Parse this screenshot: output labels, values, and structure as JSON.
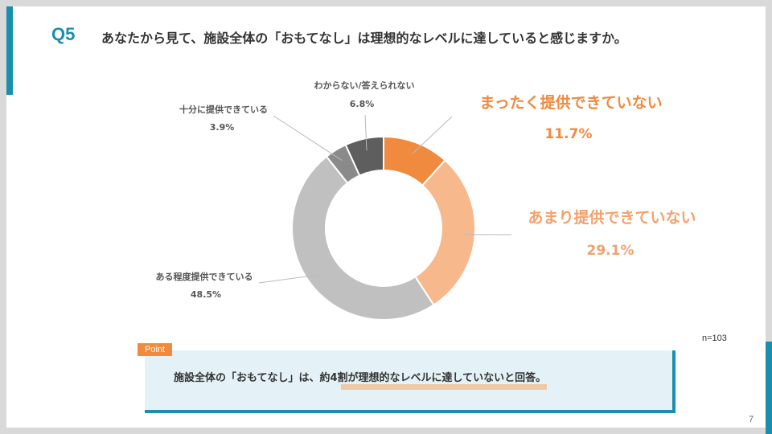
{
  "question": {
    "label": "Q5",
    "text": "あなたから見て、施設全体の「おもてなし」は理想的なレベルに達していると感じますか。"
  },
  "chart_data": {
    "type": "pie",
    "donut": true,
    "slices": [
      {
        "label": "まったく提供できていない",
        "value": 11.7,
        "value_label": "11.7%",
        "color": "#ef8a3e"
      },
      {
        "label": "あまり提供できていない",
        "value": 29.1,
        "value_label": "29.1%",
        "color": "#f7b88c"
      },
      {
        "label": "ある程度提供できている",
        "value": 48.5,
        "value_label": "48.5%",
        "color": "#c0c0c0"
      },
      {
        "label": "十分に提供できている",
        "value": 3.9,
        "value_label": "3.9%",
        "color": "#8a8a8a"
      },
      {
        "label": "わからない/答えられない",
        "value": 6.8,
        "value_label": "6.8%",
        "color": "#5e5e5e"
      }
    ]
  },
  "sample_size": "n=103",
  "point": {
    "tag": "Point",
    "text": "施設全体の「おもてなし」は、約4割が理想的なレベルに達していないと回答。"
  },
  "page_number": "7"
}
